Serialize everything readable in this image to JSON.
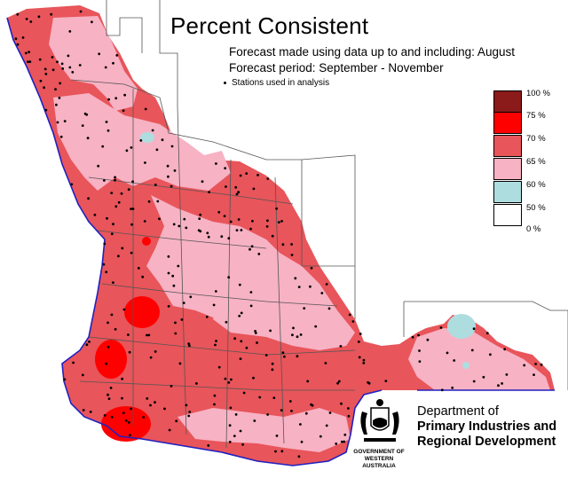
{
  "title": "Percent Consistent",
  "subtitle_line1": "Forecast made using data up to and including: August",
  "subtitle_line2": "Forecast period: September - November",
  "stations_label": "Stations used in analysis",
  "legend": [
    {
      "label": "100 %",
      "color": "#8b1a1a"
    },
    {
      "label": "75 %",
      "color": "#ff0000"
    },
    {
      "label": "70 %",
      "color": "#e8555a"
    },
    {
      "label": "65 %",
      "color": "#f7b2c4"
    },
    {
      "label": "60 %",
      "color": "#aedde0"
    },
    {
      "label": "50 %",
      "color": "#ffffff"
    },
    {
      "label": "0 %",
      "color": null
    }
  ],
  "colors": {
    "c70": "#e8555a",
    "c65": "#f7b2c4",
    "c75": "#ff0000",
    "c60": "#aedde0",
    "coast": "#2020c0"
  },
  "org": {
    "line1": "Department of",
    "line2": "Primary Industries and",
    "line3": "Regional Development",
    "gov1": "GOVERNMENT OF",
    "gov2": "WESTERN AUSTRALIA"
  }
}
